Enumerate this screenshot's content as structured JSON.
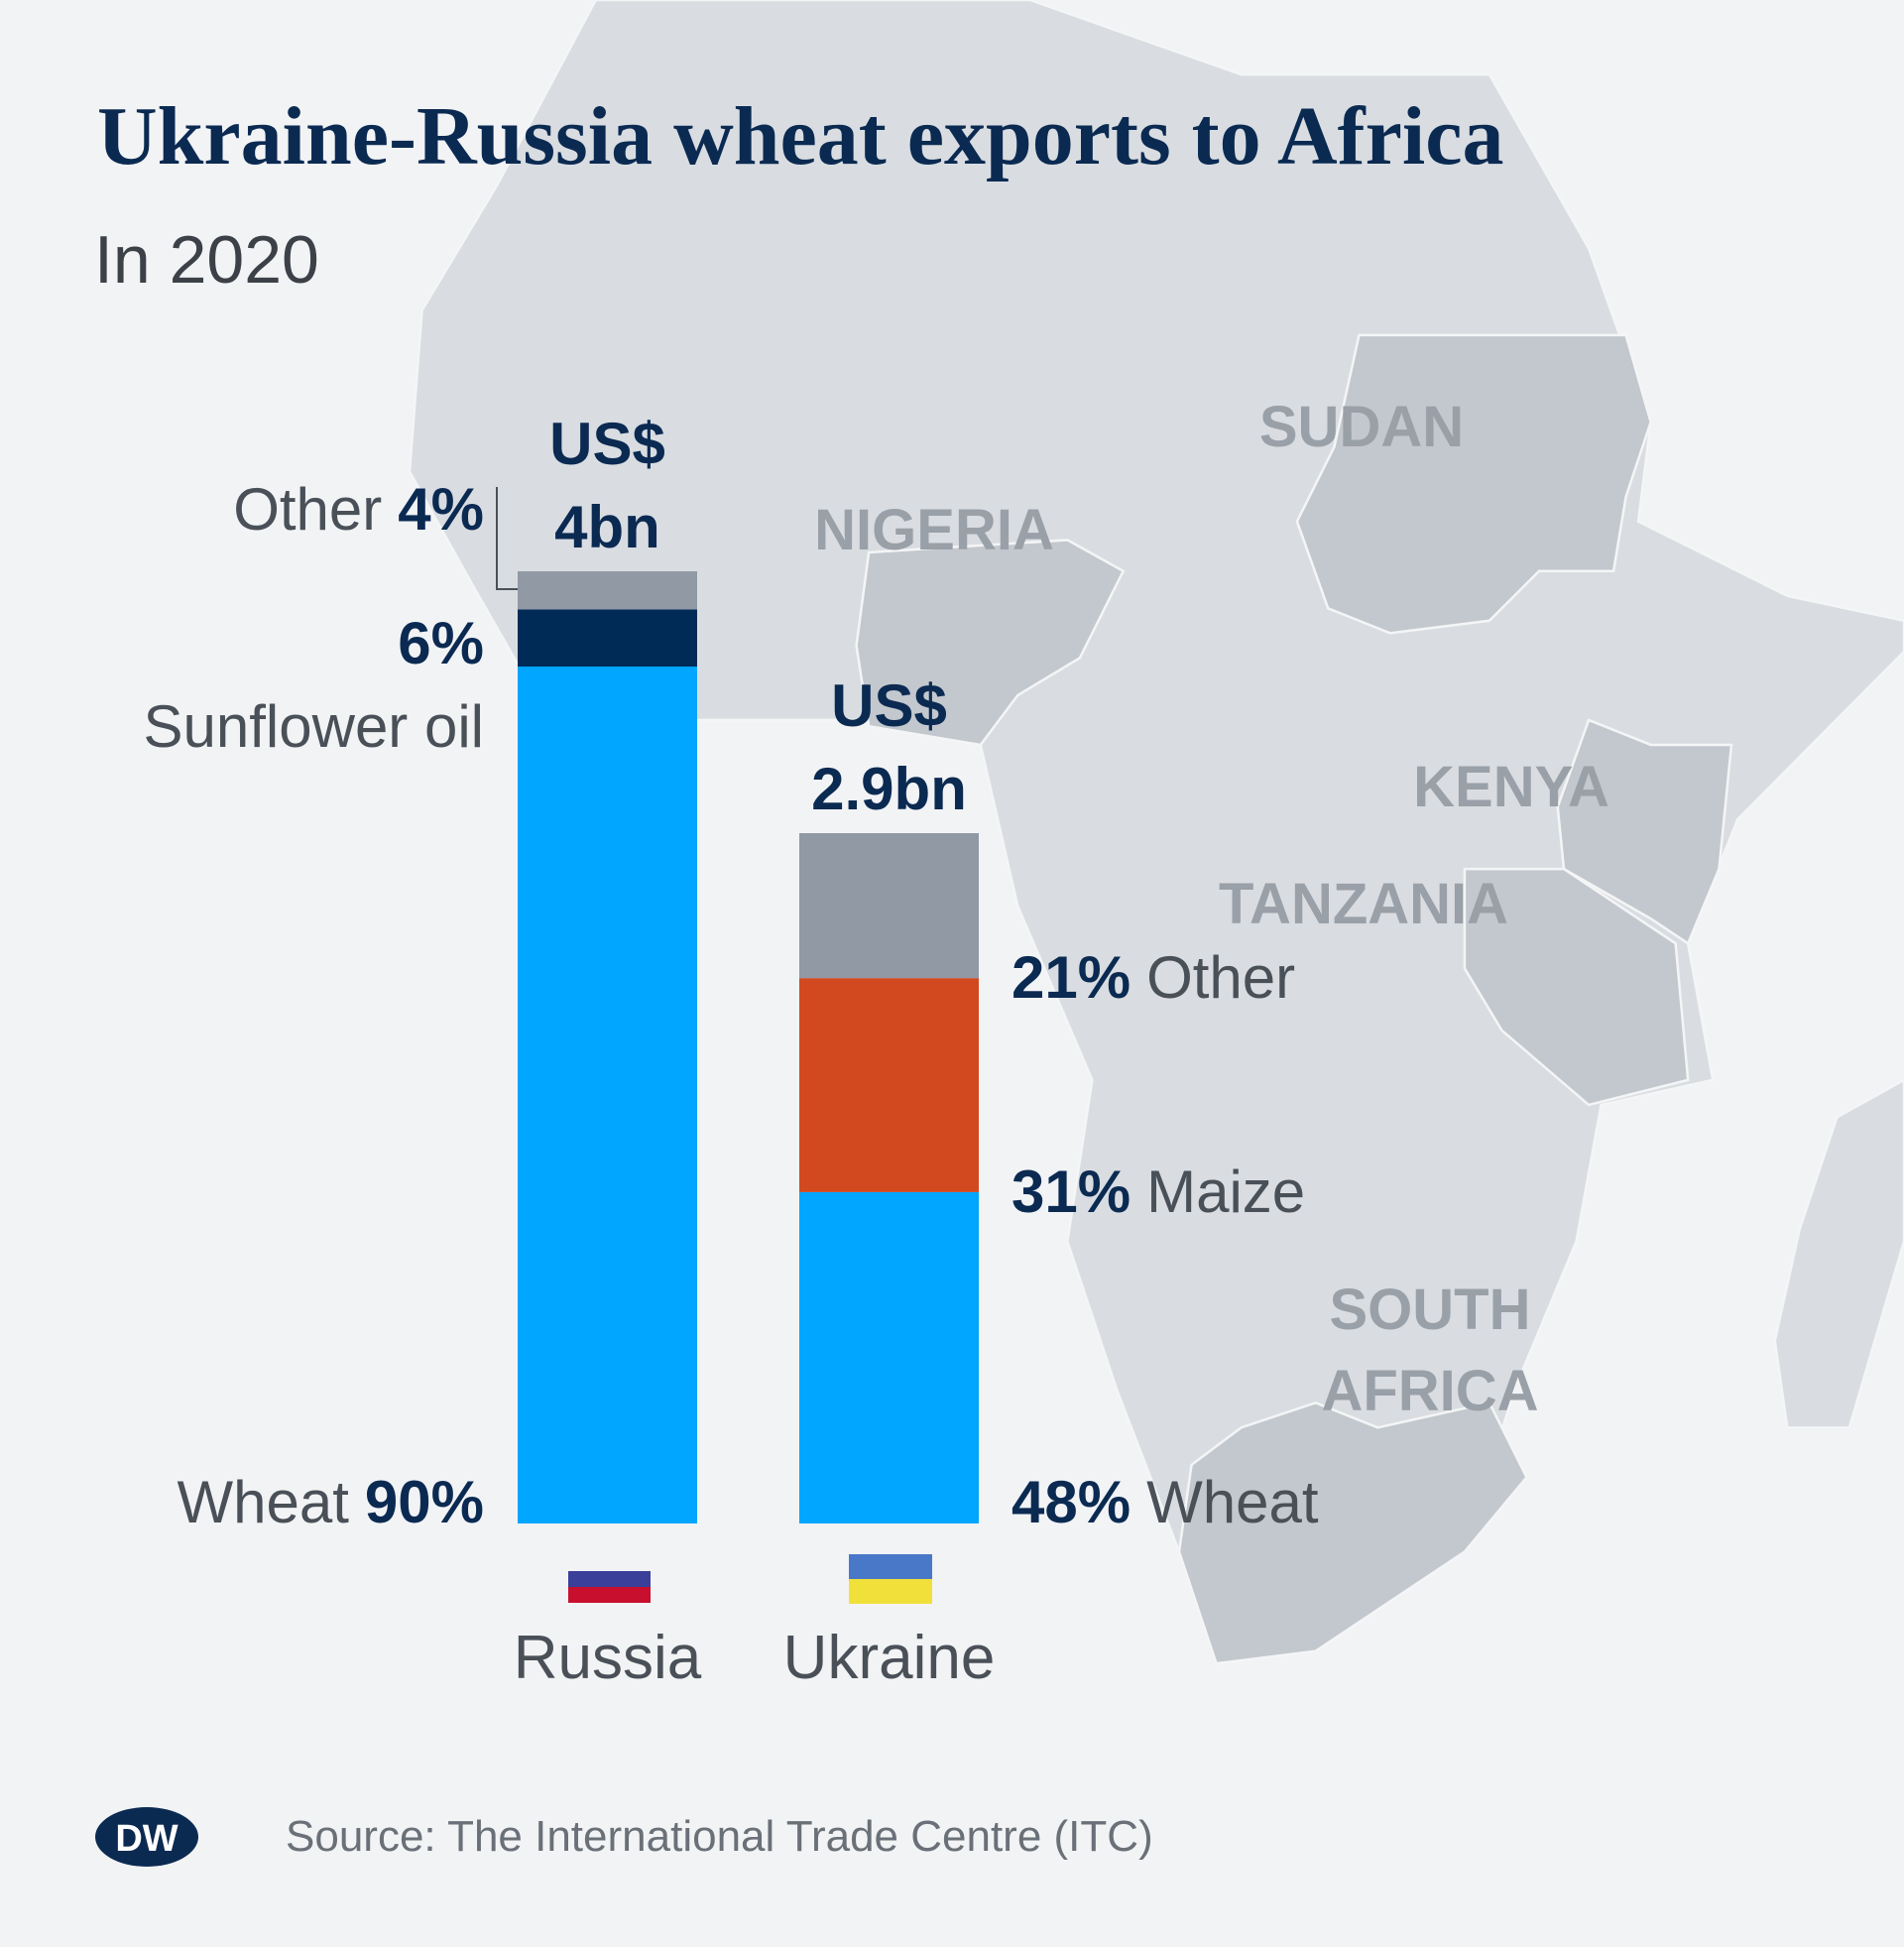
{
  "chart_data": {
    "type": "stacked-bar",
    "title": "Ukraine-Russia wheat exports to Africa",
    "subtitle": "In 2020",
    "categories": [
      "Russia",
      "Ukraine"
    ],
    "totals": {
      "values": [
        4,
        2.9
      ],
      "value_labels": [
        "US$ 4bn",
        "US$ 2.9bn"
      ]
    },
    "series": [
      {
        "name": "Wheat",
        "color": "#00a6ff",
        "values": [
          90,
          48
        ],
        "value_labels": [
          "90%",
          "48%"
        ]
      },
      {
        "name": "Sunflower oil",
        "color": "#002b57",
        "values": [
          6,
          null
        ],
        "value_labels": [
          "6%",
          null
        ]
      },
      {
        "name": "Maize",
        "color": "#d3491f",
        "values": [
          null,
          31
        ],
        "value_labels": [
          null,
          "31%"
        ]
      },
      {
        "name": "Other",
        "color": "#9099a4",
        "values": [
          4,
          21
        ],
        "value_labels": [
          "4%",
          "21%"
        ]
      }
    ],
    "map_labels": [
      "SUDAN",
      "NIGERIA",
      "KENYA",
      "TANZANIA",
      "SOUTH AFRICA"
    ],
    "source": "Source: The International Trade Centre (ITC)",
    "logo": "DW"
  }
}
